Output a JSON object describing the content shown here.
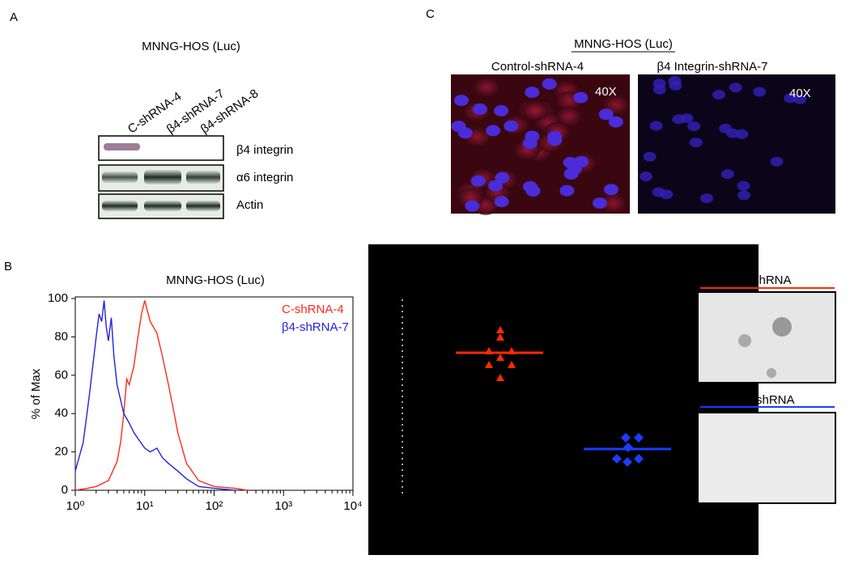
{
  "panel_labels": [
    "A",
    "B",
    "C"
  ],
  "panel_a": {
    "title": "MNNG-HOS (Luc)",
    "lanes": [
      "C-shRNA-4",
      "β4-shRNA-7",
      "β4-shRNA-8"
    ],
    "bands": [
      "β4 integrin",
      "α6 integrin",
      "Actin"
    ]
  },
  "panel_c": {
    "title": "MNNG-HOS (Luc)",
    "images": [
      {
        "label": "Control-shRNA-4",
        "magnification": "40X"
      },
      {
        "label": "β4 Integrin-shRNA-7",
        "magnification": "40X"
      }
    ]
  },
  "colony_images": [
    "shRNA",
    "shRNA"
  ],
  "chart_data": {
    "type": "line",
    "title": "MNNG-HOS (Luc)",
    "y_label": "% of Max",
    "x_scale": "log",
    "xlim": [
      1,
      10000
    ],
    "ylim": [
      0,
      100
    ],
    "xticks": [
      {
        "value": 1,
        "label": "10⁰"
      },
      {
        "value": 10,
        "label": "10¹"
      },
      {
        "value": 100,
        "label": "10²"
      },
      {
        "value": 1000,
        "label": "10³"
      },
      {
        "value": 10000,
        "label": "10⁴"
      }
    ],
    "yticks": [
      0,
      20,
      40,
      60,
      80,
      100
    ],
    "series": [
      {
        "name": "C-shRNA-4",
        "color": "#ff2a1a",
        "x": [
          1,
          1.5,
          2,
          3,
          4,
          4.5,
          5,
          5.5,
          6,
          7,
          8,
          9,
          10,
          12,
          15,
          18,
          22,
          26,
          30,
          40,
          60,
          100,
          200,
          300
        ],
        "values": [
          0,
          1,
          2,
          5,
          15,
          25,
          40,
          58,
          55,
          65,
          80,
          92,
          99,
          88,
          82,
          70,
          55,
          42,
          30,
          14,
          5,
          2,
          1,
          0
        ]
      },
      {
        "name": "β4-shRNA-7",
        "color": "#2222dd",
        "x": [
          1,
          1.3,
          1.6,
          2,
          2.2,
          2.4,
          2.6,
          2.8,
          3,
          3.3,
          3.6,
          4,
          5,
          6,
          7,
          8,
          10,
          12,
          15,
          18,
          22,
          30,
          40,
          60,
          100,
          200
        ],
        "values": [
          10,
          25,
          50,
          80,
          92,
          88,
          99,
          85,
          78,
          90,
          70,
          55,
          40,
          35,
          30,
          27,
          22,
          20,
          22,
          17,
          14,
          10,
          6,
          2,
          1,
          0
        ]
      }
    ]
  }
}
